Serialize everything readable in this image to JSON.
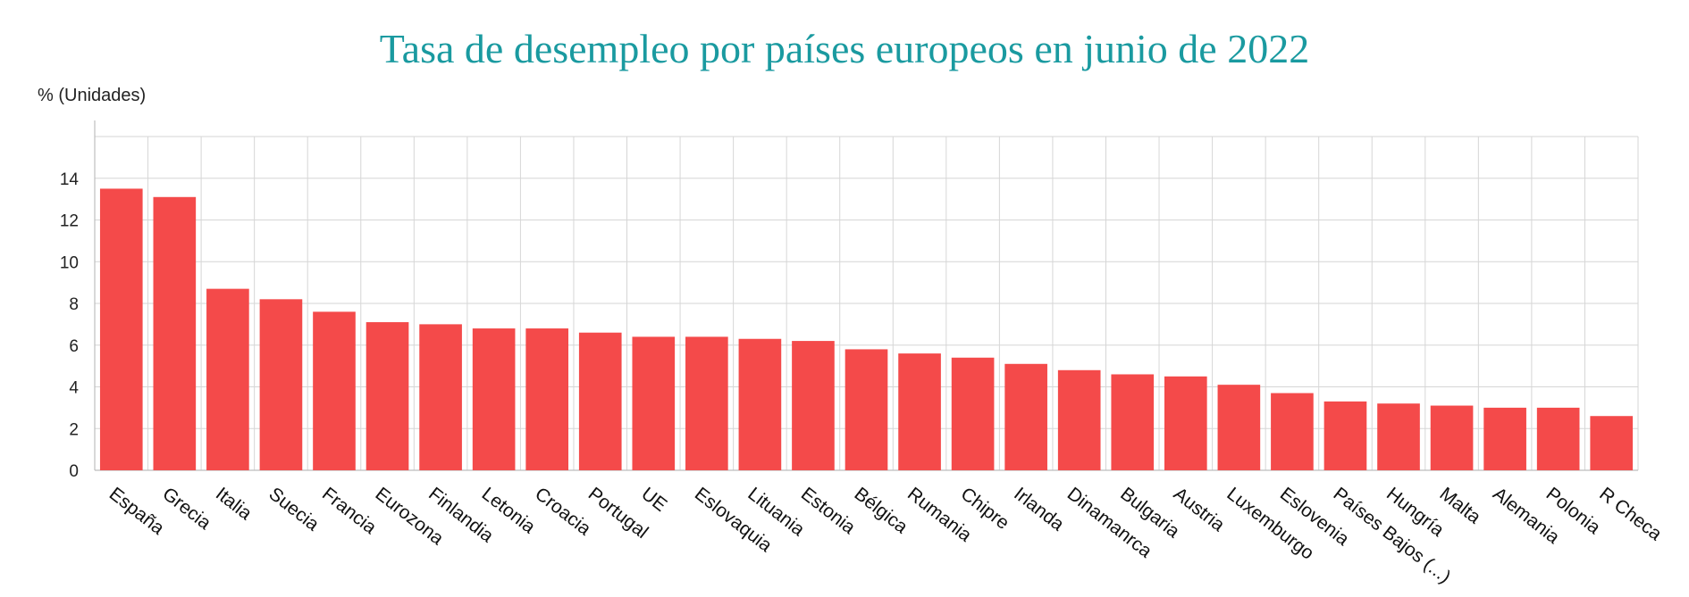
{
  "chart_data": {
    "type": "bar",
    "title": "Tasa de desempleo por países europeos en junio de 2022",
    "ylabel": "% (Unidades)",
    "xlabel": "",
    "ylim": [
      0,
      16
    ],
    "yticks": [
      0,
      2,
      4,
      6,
      8,
      10,
      12,
      14
    ],
    "grid": true,
    "legend": "none",
    "bar_color": "#f44a4a",
    "categories": [
      "España",
      "Grecia",
      "Italia",
      "Suecia",
      "Francia",
      "Eurozona",
      "Finlandia",
      "Letonia",
      "Croacia",
      "Portugal",
      "UE",
      "Eslovaquia",
      "Lituania",
      "Estonia",
      "Bélgica",
      "Rumania",
      "Chipre",
      "Irlanda",
      "Dinamanrca",
      "Bulgaria",
      "Austria",
      "Luxemburgo",
      "Eslovenia",
      "Países Bajos (...)",
      "Hungría",
      "Malta",
      "Alemania",
      "Polonia",
      "R Checa"
    ],
    "values": [
      13.5,
      13.1,
      8.7,
      8.2,
      7.6,
      7.1,
      7.0,
      6.8,
      6.8,
      6.6,
      6.4,
      6.4,
      6.3,
      6.2,
      5.8,
      5.6,
      5.4,
      5.1,
      4.8,
      4.6,
      4.5,
      4.1,
      3.7,
      3.3,
      3.2,
      3.1,
      3.0,
      3.0,
      2.6
    ]
  }
}
